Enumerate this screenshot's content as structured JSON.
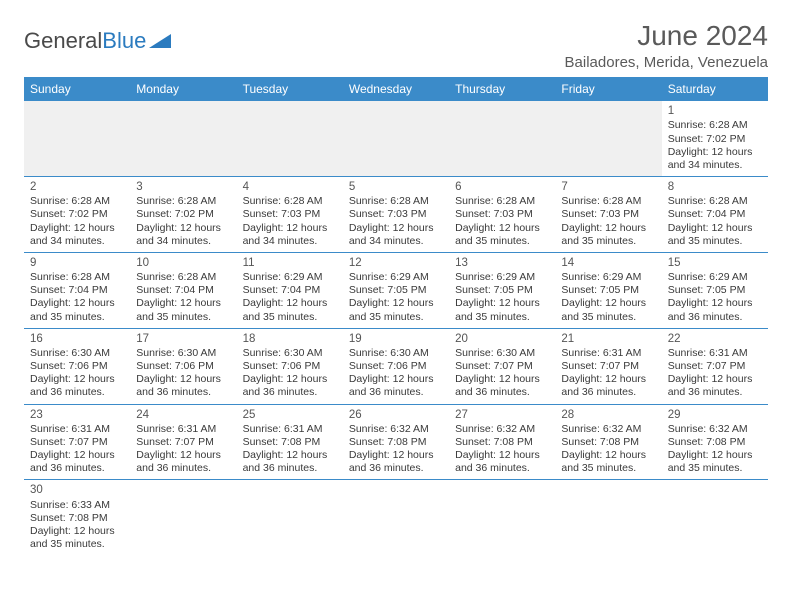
{
  "branding": {
    "logo_part1": "General",
    "logo_part2": "Blue",
    "logo_color1": "#4a4a4a",
    "logo_color2": "#2b7bbf"
  },
  "header": {
    "month_title": "June 2024",
    "location": "Bailadores, Merida, Venezuela"
  },
  "colors": {
    "header_bg": "#3b8bc9",
    "header_text": "#ffffff",
    "row_divider": "#3b8bc9",
    "empty_cell_bg": "#f0f0f0",
    "body_text": "#3a3a3a",
    "title_text": "#5a5a5a"
  },
  "typography": {
    "month_title_size_pt": 21,
    "location_size_pt": 11,
    "dayheader_size_pt": 9,
    "cell_size_pt": 8
  },
  "calendar": {
    "day_headers": [
      "Sunday",
      "Monday",
      "Tuesday",
      "Wednesday",
      "Thursday",
      "Friday",
      "Saturday"
    ],
    "weeks": [
      [
        null,
        null,
        null,
        null,
        null,
        null,
        {
          "d": "1",
          "sr": "Sunrise: 6:28 AM",
          "ss": "Sunset: 7:02 PM",
          "dl1": "Daylight: 12 hours",
          "dl2": "and 34 minutes."
        }
      ],
      [
        {
          "d": "2",
          "sr": "Sunrise: 6:28 AM",
          "ss": "Sunset: 7:02 PM",
          "dl1": "Daylight: 12 hours",
          "dl2": "and 34 minutes."
        },
        {
          "d": "3",
          "sr": "Sunrise: 6:28 AM",
          "ss": "Sunset: 7:02 PM",
          "dl1": "Daylight: 12 hours",
          "dl2": "and 34 minutes."
        },
        {
          "d": "4",
          "sr": "Sunrise: 6:28 AM",
          "ss": "Sunset: 7:03 PM",
          "dl1": "Daylight: 12 hours",
          "dl2": "and 34 minutes."
        },
        {
          "d": "5",
          "sr": "Sunrise: 6:28 AM",
          "ss": "Sunset: 7:03 PM",
          "dl1": "Daylight: 12 hours",
          "dl2": "and 34 minutes."
        },
        {
          "d": "6",
          "sr": "Sunrise: 6:28 AM",
          "ss": "Sunset: 7:03 PM",
          "dl1": "Daylight: 12 hours",
          "dl2": "and 35 minutes."
        },
        {
          "d": "7",
          "sr": "Sunrise: 6:28 AM",
          "ss": "Sunset: 7:03 PM",
          "dl1": "Daylight: 12 hours",
          "dl2": "and 35 minutes."
        },
        {
          "d": "8",
          "sr": "Sunrise: 6:28 AM",
          "ss": "Sunset: 7:04 PM",
          "dl1": "Daylight: 12 hours",
          "dl2": "and 35 minutes."
        }
      ],
      [
        {
          "d": "9",
          "sr": "Sunrise: 6:28 AM",
          "ss": "Sunset: 7:04 PM",
          "dl1": "Daylight: 12 hours",
          "dl2": "and 35 minutes."
        },
        {
          "d": "10",
          "sr": "Sunrise: 6:28 AM",
          "ss": "Sunset: 7:04 PM",
          "dl1": "Daylight: 12 hours",
          "dl2": "and 35 minutes."
        },
        {
          "d": "11",
          "sr": "Sunrise: 6:29 AM",
          "ss": "Sunset: 7:04 PM",
          "dl1": "Daylight: 12 hours",
          "dl2": "and 35 minutes."
        },
        {
          "d": "12",
          "sr": "Sunrise: 6:29 AM",
          "ss": "Sunset: 7:05 PM",
          "dl1": "Daylight: 12 hours",
          "dl2": "and 35 minutes."
        },
        {
          "d": "13",
          "sr": "Sunrise: 6:29 AM",
          "ss": "Sunset: 7:05 PM",
          "dl1": "Daylight: 12 hours",
          "dl2": "and 35 minutes."
        },
        {
          "d": "14",
          "sr": "Sunrise: 6:29 AM",
          "ss": "Sunset: 7:05 PM",
          "dl1": "Daylight: 12 hours",
          "dl2": "and 35 minutes."
        },
        {
          "d": "15",
          "sr": "Sunrise: 6:29 AM",
          "ss": "Sunset: 7:05 PM",
          "dl1": "Daylight: 12 hours",
          "dl2": "and 36 minutes."
        }
      ],
      [
        {
          "d": "16",
          "sr": "Sunrise: 6:30 AM",
          "ss": "Sunset: 7:06 PM",
          "dl1": "Daylight: 12 hours",
          "dl2": "and 36 minutes."
        },
        {
          "d": "17",
          "sr": "Sunrise: 6:30 AM",
          "ss": "Sunset: 7:06 PM",
          "dl1": "Daylight: 12 hours",
          "dl2": "and 36 minutes."
        },
        {
          "d": "18",
          "sr": "Sunrise: 6:30 AM",
          "ss": "Sunset: 7:06 PM",
          "dl1": "Daylight: 12 hours",
          "dl2": "and 36 minutes."
        },
        {
          "d": "19",
          "sr": "Sunrise: 6:30 AM",
          "ss": "Sunset: 7:06 PM",
          "dl1": "Daylight: 12 hours",
          "dl2": "and 36 minutes."
        },
        {
          "d": "20",
          "sr": "Sunrise: 6:30 AM",
          "ss": "Sunset: 7:07 PM",
          "dl1": "Daylight: 12 hours",
          "dl2": "and 36 minutes."
        },
        {
          "d": "21",
          "sr": "Sunrise: 6:31 AM",
          "ss": "Sunset: 7:07 PM",
          "dl1": "Daylight: 12 hours",
          "dl2": "and 36 minutes."
        },
        {
          "d": "22",
          "sr": "Sunrise: 6:31 AM",
          "ss": "Sunset: 7:07 PM",
          "dl1": "Daylight: 12 hours",
          "dl2": "and 36 minutes."
        }
      ],
      [
        {
          "d": "23",
          "sr": "Sunrise: 6:31 AM",
          "ss": "Sunset: 7:07 PM",
          "dl1": "Daylight: 12 hours",
          "dl2": "and 36 minutes."
        },
        {
          "d": "24",
          "sr": "Sunrise: 6:31 AM",
          "ss": "Sunset: 7:07 PM",
          "dl1": "Daylight: 12 hours",
          "dl2": "and 36 minutes."
        },
        {
          "d": "25",
          "sr": "Sunrise: 6:31 AM",
          "ss": "Sunset: 7:08 PM",
          "dl1": "Daylight: 12 hours",
          "dl2": "and 36 minutes."
        },
        {
          "d": "26",
          "sr": "Sunrise: 6:32 AM",
          "ss": "Sunset: 7:08 PM",
          "dl1": "Daylight: 12 hours",
          "dl2": "and 36 minutes."
        },
        {
          "d": "27",
          "sr": "Sunrise: 6:32 AM",
          "ss": "Sunset: 7:08 PM",
          "dl1": "Daylight: 12 hours",
          "dl2": "and 36 minutes."
        },
        {
          "d": "28",
          "sr": "Sunrise: 6:32 AM",
          "ss": "Sunset: 7:08 PM",
          "dl1": "Daylight: 12 hours",
          "dl2": "and 35 minutes."
        },
        {
          "d": "29",
          "sr": "Sunrise: 6:32 AM",
          "ss": "Sunset: 7:08 PM",
          "dl1": "Daylight: 12 hours",
          "dl2": "and 35 minutes."
        }
      ],
      [
        {
          "d": "30",
          "sr": "Sunrise: 6:33 AM",
          "ss": "Sunset: 7:08 PM",
          "dl1": "Daylight: 12 hours",
          "dl2": "and 35 minutes."
        },
        null,
        null,
        null,
        null,
        null,
        null
      ]
    ]
  }
}
